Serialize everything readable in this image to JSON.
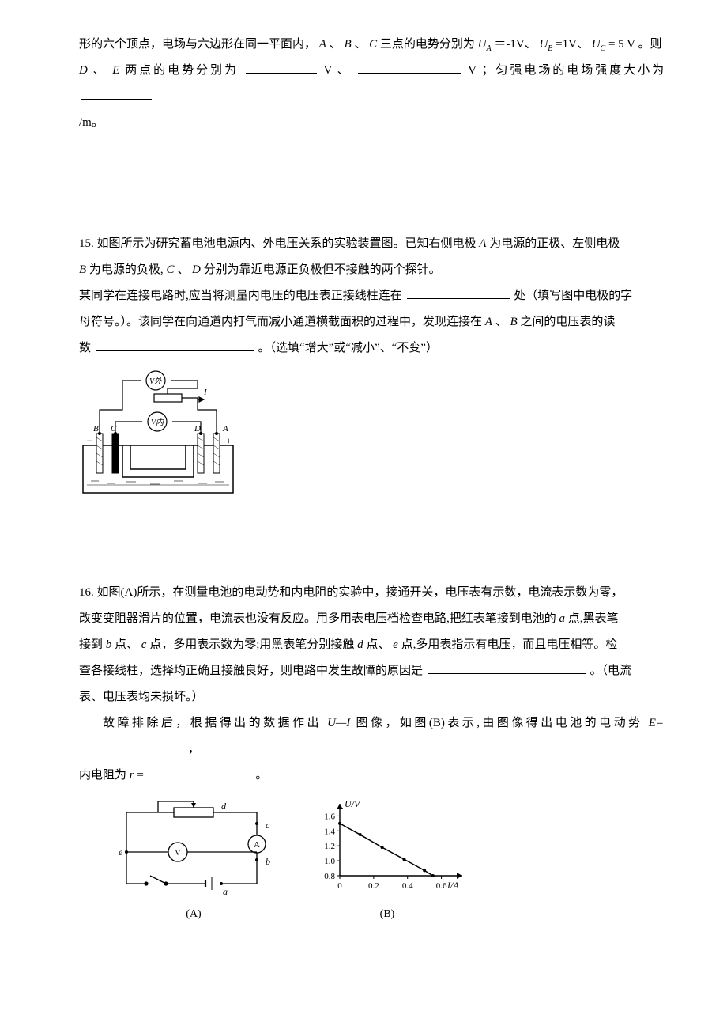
{
  "q14": {
    "line1_a": "形的六个顶点，电场与六边形在同一平面内，",
    "A": "A",
    "dun1": "、",
    "B": "B",
    "dun2": "、",
    "C": "C",
    "line1_b": "三点的电势分别为",
    "UA_label": "U",
    "UA_sub": "A",
    "eq1": "＝-1V、",
    "UB_label": "U",
    "UB_sub": "B",
    "eq2": "=1V、",
    "UC_label": "U",
    "UC_sub": "C",
    "eq3": "= 5 V 。则",
    "line2_a": "D",
    "dun3": "、",
    "line2_b": "E",
    "line2_c": " 两点的电势分别为",
    "unit_v1": "V 、",
    "unit_v2": "V ；匀强电场的电场强度大小为",
    "unit_e_end": "/m。"
  },
  "q15": {
    "num": "15.",
    "p1a": " 如图所示为研究蓄电池电源内、外电压关系的实验装置图。已知右侧电极",
    "A1": "A",
    "p1b": "为电源的正极、左侧电极",
    "B1": "B",
    "p2a": "为电源的负极,",
    "C1": "C",
    "dunCD": "、",
    "D1": "D",
    "p2b": "分别为靠近电源正负极但不接触的两个探针。",
    "p3a": "某同学在连接电路时,应当将测量内电压的电压表正接线柱连在",
    "p3b": "处（填写图中电极的字",
    "p4a": "母符号。）。该同学在向通道内打气而减小通道横截面积的过程中，发现连接在",
    "A2": "A",
    "dunAB": "、",
    "B2": "B",
    "p4b": "之间的电压表的读",
    "p5a": "数",
    "p5b": "。（选填“增大”或“减小”、“不变”）",
    "fig": {
      "V_out": "V外",
      "V_in": "V内",
      "I": "I",
      "B": "B",
      "C": "C",
      "D": "D",
      "A": "A",
      "minus": "−",
      "plus": "+"
    }
  },
  "q16": {
    "num": "16.",
    "p1a": " 如图(A)所示，在测量电池的电动势和内电阻的实验中，接通开关，电压表有示数，电流表示数为零，",
    "p2a": "改变变阻器滑片的位置，电流表也没有反应。用多用表电压档检查电路,把红表笔接到电池的",
    "a1": "a",
    "p2b": "点,黑表笔",
    "p3a": "接到",
    "b1": "b",
    "p3b": "点、",
    "c1": "c",
    "p3c": "点，多用表示数为零;用黑表笔分别接触",
    "d1": "d",
    "p3d": "点、",
    "e1": "e",
    "p3e": "点,多用表指示有电压，而且电压相等。检",
    "p4a": "查各接线柱，选择均正确且接触良好，则电路中发生故障的原因是",
    "p4b": "。（电流",
    "p5a": "表、电压表均未损坏。）",
    "p6a": "故障排除后，根据得出的数据作出",
    "UI": "U—I",
    "p6b": "图像，如图(B)表示,由图像得出电池的电动势",
    "Eeq": "E=",
    "p6c": "，",
    "p7a": "内电阻为",
    "req": "r",
    "p7b": "=",
    "p7c": "。",
    "figA": {
      "d": "d",
      "c": "c",
      "A": "A",
      "b": "b",
      "e": "e",
      "V": "V",
      "a": "a",
      "caption": "(A)"
    },
    "figB": {
      "ylabel": "U/V",
      "xlabel": "I/A",
      "yticks": [
        "0.8",
        "1.0",
        "1.2",
        "1.4",
        "1.6"
      ],
      "xticks": [
        "0",
        "0.2",
        "0.4",
        "0.6"
      ],
      "caption": "(B)",
      "line_color": "#000000",
      "axis_color": "#000000",
      "background": "#ffffff"
    }
  }
}
